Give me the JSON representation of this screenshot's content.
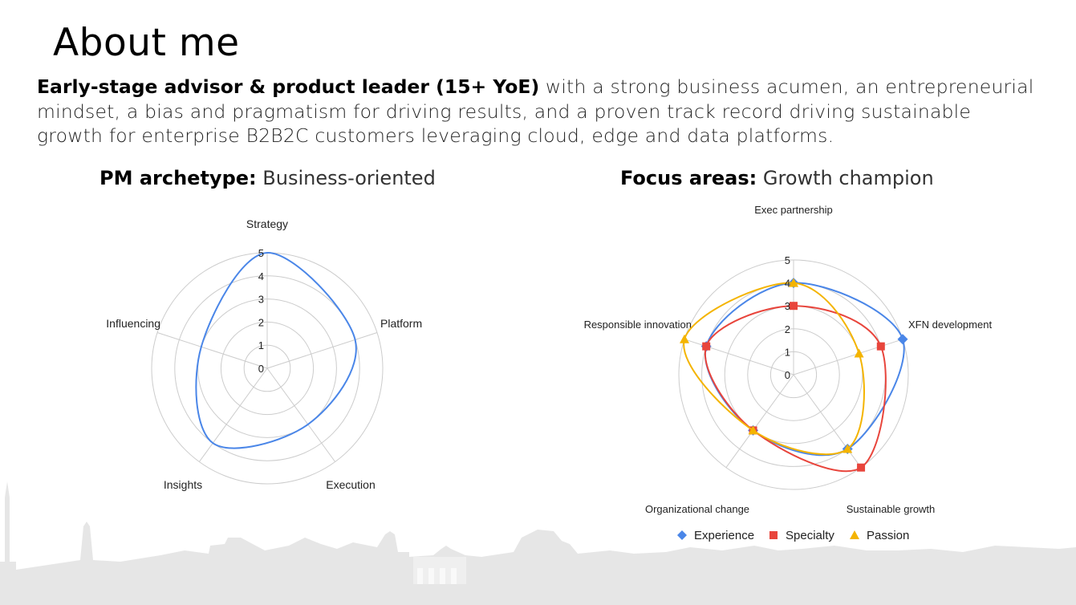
{
  "page": {
    "title": "About me",
    "intro_bold": "Early-stage advisor & product leader (15+ YoE)",
    "intro_rest": " with a strong business acumen, an entrepreneurial mindset, a bias and pragmatism for driving results, and a proven track record driving sustainable growth for enterprise B2B2C customers leveraging cloud, edge and data platforms."
  },
  "chart_data": [
    {
      "type": "radar",
      "heading_bold": "PM archetype:",
      "heading_light": "Business-oriented",
      "categories": [
        "Strategy",
        "Platform",
        "Execution",
        "Insights",
        "Influencing"
      ],
      "radial_ticks": [
        "0",
        "1",
        "2",
        "3",
        "4",
        "5"
      ],
      "rlim": [
        0,
        5
      ],
      "grid": true,
      "series": [
        {
          "values": [
            5,
            4,
            3,
            4,
            3
          ],
          "color": "#4a86e8",
          "markers": false
        }
      ]
    },
    {
      "type": "radar",
      "heading_bold": "Focus areas:",
      "heading_light": "Growth champion",
      "categories": [
        "Exec partnership",
        "XFN development",
        "Sustainable growth",
        "Organizational change",
        "Responsible innovation"
      ],
      "radial_ticks": [
        "0",
        "1",
        "2",
        "3",
        "4",
        "5"
      ],
      "rlim": [
        0,
        5
      ],
      "grid": true,
      "legend_position": "bottom",
      "series": [
        {
          "name": "Experience",
          "values": [
            4,
            5,
            4,
            3,
            4
          ],
          "color": "#4a86e8",
          "marker": "diamond"
        },
        {
          "name": "Specialty",
          "values": [
            3,
            4,
            5,
            3,
            4
          ],
          "color": "#e8453c",
          "marker": "square"
        },
        {
          "name": "Passion",
          "values": [
            4,
            3,
            4,
            3,
            5
          ],
          "color": "#f4b400",
          "marker": "triangle"
        }
      ]
    }
  ]
}
